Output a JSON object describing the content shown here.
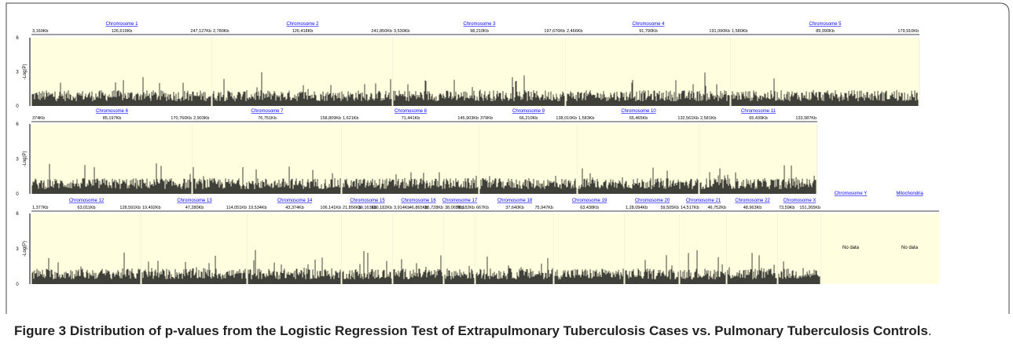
{
  "rows": [
    {
      "chromosomes": [
        {
          "name": "Chromosome 1",
          "positions": [
            "3,160Kb",
            "126,619Kb",
            "247,127Kb"
          ]
        },
        {
          "name": "Chromosome 2",
          "positions": [
            "2,780Kb",
            "126,418Kb",
            "241,850Kb"
          ]
        },
        {
          "name": "Chromosome 3",
          "positions": [
            "3,530Kb",
            "98,210Kb",
            "197,676Kb"
          ]
        },
        {
          "name": "Chromosome 4",
          "positions": [
            "2,466Kb",
            "91,790Kb",
            "191,090Kb"
          ]
        },
        {
          "name": "Chromosome 5",
          "positions": [
            "1,580Kb",
            "89,990Kb",
            "179,910Kb"
          ]
        }
      ]
    },
    {
      "chromosomes": [
        {
          "name": "Chromosome 6",
          "positions": [
            "374Kb",
            "85,197Kb",
            "170,760Kb"
          ]
        },
        {
          "name": "Chromosome 7",
          "positions": [
            "2,903Kb",
            "76,751Kb",
            "158,809Kb"
          ]
        },
        {
          "name": "Chromosome 8",
          "positions": [
            "1,621Kb",
            "71,441Kb",
            "145,903Kb"
          ]
        },
        {
          "name": "Chromosome 9",
          "positions": [
            "379Kb",
            "66,210Kb",
            "138,010Kb"
          ]
        },
        {
          "name": "Chromosome 10",
          "positions": [
            "1,583Kb",
            "65,465Kb",
            "132,561Kb"
          ]
        },
        {
          "name": "Chromosome 11",
          "positions": [
            "2,581Kb",
            "65,439Kb",
            "133,987Kb"
          ]
        }
      ]
    },
    {
      "chromosomes": [
        {
          "name": "Chromosome 12",
          "positions": [
            "1,377Kb",
            "63,011Kb",
            "128,591Kb"
          ]
        },
        {
          "name": "Chromosome 13",
          "positions": [
            "19,492Kb",
            "47,280Kb",
            "114,051Kb"
          ]
        },
        {
          "name": "Chromosome 14",
          "positions": [
            "19,534Kb",
            "43,374Kb",
            "106,141Kb"
          ]
        },
        {
          "name": "Chromosome 15",
          "positions": [
            "21,856Kb",
            "39,163Kb",
            "100,182Kb"
          ]
        },
        {
          "name": "Chromosome 16",
          "positions": [
            "3,914Kb",
            "46,865Kb",
            "85,728Kb"
          ]
        },
        {
          "name": "Chromosome 17",
          "positions": [
            "38,065Kb",
            "78,182Kb"
          ]
        },
        {
          "name": "Chromosome 18",
          "positions": [
            "667Kb",
            "37,640Kb",
            "75,947Kb"
          ]
        },
        {
          "name": "Chromosome 19",
          "positions": [
            "63,438Kb"
          ]
        },
        {
          "name": "Chromosome 20",
          "positions": [
            "1,28,094Kb",
            "59,505Kb"
          ]
        },
        {
          "name": "Chromosome 21",
          "positions": [
            "14,517Kb",
            "46,752Kb"
          ]
        },
        {
          "name": "Chromosome 22",
          "positions": [
            "48,963Kb"
          ]
        },
        {
          "name": "Chromosome X",
          "positions": [
            "73,59Kb",
            "151,265Kb"
          ]
        },
        {
          "name": "Chromosome Y",
          "positions": [],
          "note": "No data"
        },
        {
          "name": "Mitochondria",
          "positions": [],
          "note": "No data"
        }
      ]
    }
  ],
  "y_axis": {
    "label": "-Log(P)",
    "ticks": [
      "0",
      "3",
      "6"
    ]
  },
  "caption": {
    "label": "Figure 3",
    "text": "Distribution of p-values from the Logistic Regression Test of Extrapulmonary Tuberculosis Cases vs. Pulmonary Tuberculosis Controls",
    "end": "."
  }
}
